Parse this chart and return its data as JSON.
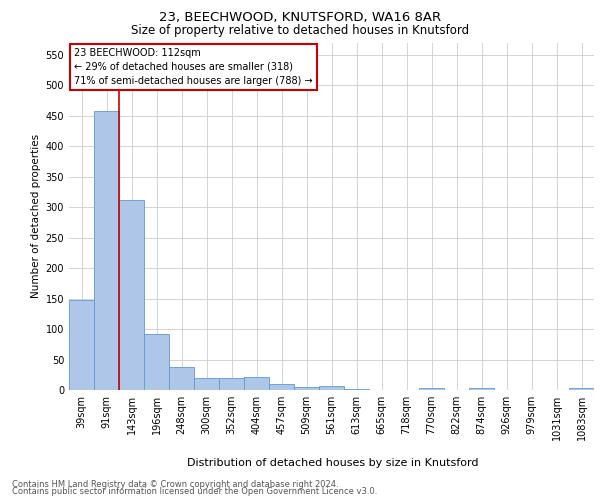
{
  "title1": "23, BEECHWOOD, KNUTSFORD, WA16 8AR",
  "title2": "Size of property relative to detached houses in Knutsford",
  "xlabel": "Distribution of detached houses by size in Knutsford",
  "ylabel": "Number of detached properties",
  "footer1": "Contains HM Land Registry data © Crown copyright and database right 2024.",
  "footer2": "Contains public sector information licensed under the Open Government Licence v3.0.",
  "annotation_line1": "23 BEECHWOOD: 112sqm",
  "annotation_line2": "← 29% of detached houses are smaller (318)",
  "annotation_line3": "71% of semi-detached houses are larger (788) →",
  "bar_labels": [
    "39sqm",
    "91sqm",
    "143sqm",
    "196sqm",
    "248sqm",
    "300sqm",
    "352sqm",
    "404sqm",
    "457sqm",
    "509sqm",
    "561sqm",
    "613sqm",
    "665sqm",
    "718sqm",
    "770sqm",
    "822sqm",
    "874sqm",
    "926sqm",
    "979sqm",
    "1031sqm",
    "1083sqm"
  ],
  "bar_values": [
    148,
    457,
    311,
    92,
    38,
    19,
    20,
    22,
    10,
    5,
    6,
    1,
    0,
    0,
    4,
    0,
    4,
    0,
    0,
    0,
    4
  ],
  "bar_color": "#aec6e8",
  "bar_edge_color": "#5b9bd5",
  "red_line_x": 1.5,
  "ylim": [
    0,
    570
  ],
  "yticks": [
    0,
    50,
    100,
    150,
    200,
    250,
    300,
    350,
    400,
    450,
    500,
    550
  ],
  "background_color": "#ffffff",
  "grid_color": "#cccccc",
  "annotation_box_color": "#ffffff",
  "annotation_box_edge": "#cc0000",
  "red_line_color": "#cc0000",
  "title1_fontsize": 9.5,
  "title2_fontsize": 8.5,
  "ylabel_fontsize": 7.5,
  "xlabel_fontsize": 8,
  "footer_fontsize": 6,
  "tick_fontsize": 7,
  "annotation_fontsize": 7
}
